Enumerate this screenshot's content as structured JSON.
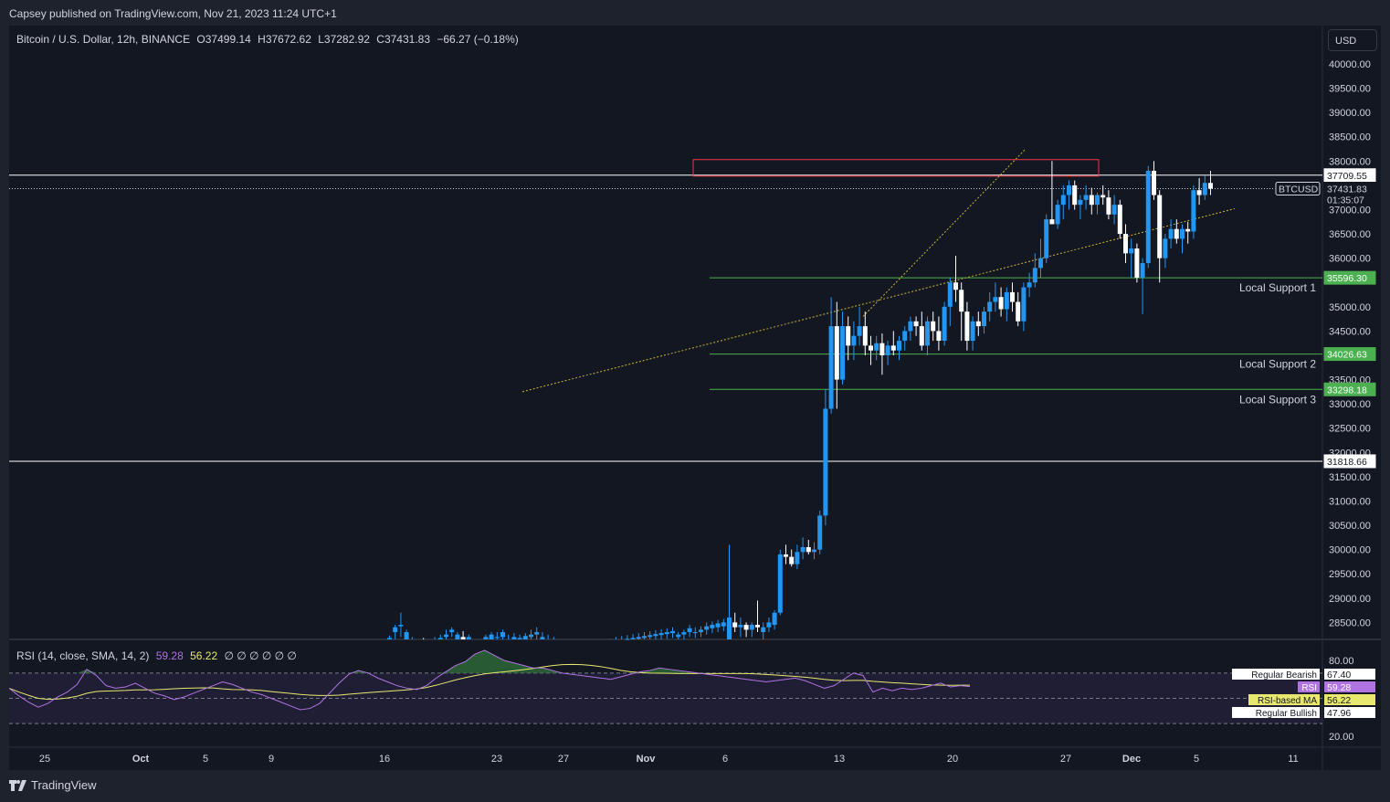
{
  "published_by": "Capsey published on TradingView.com, Nov 21, 2023 11:24 UTC+1",
  "symbol": {
    "name": "Bitcoin / U.S. Dollar, 12h, BINANCE",
    "open": "O37499.14",
    "high": "H37672.62",
    "low": "L37282.92",
    "close": "C37431.83",
    "change": "−66.27 (−0.18%)"
  },
  "currency_button": "USD",
  "brand": "TradingView",
  "colors": {
    "up": "#2196f3",
    "down": "#ffffff",
    "support": "#4caf50",
    "resistance_box": "#f23645",
    "rsi": "#b073e0",
    "rsi_ma": "#e8e86e",
    "trendline": "#c8b43c"
  },
  "chart_data": {
    "type": "candlestick",
    "x_axis_labels": [
      "25",
      "Oct",
      "5",
      "9",
      "16",
      "23",
      "27",
      "Nov",
      "6",
      "13",
      "20",
      "27",
      "Dec",
      "5",
      "11"
    ],
    "y_axis_labels": [
      "40000.00",
      "39500.00",
      "39000.00",
      "38500.00",
      "38000.00",
      "37000.00",
      "36500.00",
      "36000.00",
      "35000.00",
      "34500.00",
      "33500.00",
      "33000.00",
      "32500.00",
      "32000.00",
      "31500.00",
      "31000.00",
      "30500.00",
      "30000.00",
      "29500.00",
      "29000.00",
      "28500.00"
    ],
    "price_tags": [
      {
        "label": "37709.55",
        "value": 37709.55,
        "kind": "level"
      },
      {
        "label": "37431.83",
        "value": 37431.83,
        "kind": "last"
      },
      {
        "label": "35596.30",
        "value": 35596.3,
        "kind": "support"
      },
      {
        "label": "34026.63",
        "value": 34026.63,
        "kind": "support"
      },
      {
        "label": "33298.18",
        "value": 33298.18,
        "kind": "support"
      },
      {
        "label": "31818.66",
        "value": 31818.66,
        "kind": "level"
      }
    ],
    "symbol_tag": "BTCUSD",
    "countdown": "01:35:07",
    "horizontal_levels": [
      37709.55,
      31818.66
    ],
    "supports": [
      {
        "name": "Local Support 1",
        "value": 35596.3
      },
      {
        "name": "Local Support 2",
        "value": 34026.63
      },
      {
        "name": "Local Support 3",
        "value": 33298.18
      }
    ],
    "resistance_zone": {
      "from": 37690,
      "to": 38030
    },
    "candles_ohlc": [
      [
        28100,
        28230,
        28050,
        28180
      ],
      [
        28300,
        28450,
        28100,
        28400
      ],
      [
        28420,
        28700,
        28200,
        28450
      ],
      [
        28150,
        28350,
        28100,
        28300
      ],
      [
        28080,
        28200,
        27950,
        28150
      ],
      [
        28050,
        28150,
        27900,
        28100
      ],
      [
        28100,
        28180,
        27950,
        28000
      ],
      [
        27980,
        28100,
        27880,
        28050
      ],
      [
        28050,
        28200,
        27950,
        28150
      ],
      [
        28100,
        28250,
        28000,
        28180
      ],
      [
        28200,
        28350,
        28100,
        28250
      ],
      [
        28300,
        28400,
        28200,
        28350
      ],
      [
        28150,
        28300,
        28050,
        28250
      ],
      [
        28200,
        28320,
        28080,
        28150
      ],
      [
        28100,
        28250,
        27980,
        28200
      ],
      [
        28050,
        28150,
        27900,
        28100
      ],
      [
        27950,
        28100,
        27850,
        28050
      ],
      [
        28100,
        28250,
        28000,
        28200
      ],
      [
        28150,
        28300,
        28050,
        28250
      ],
      [
        28180,
        28300,
        28100,
        28200
      ],
      [
        28200,
        28350,
        28100,
        28300
      ],
      [
        28100,
        28250,
        28000,
        28150
      ],
      [
        28150,
        28280,
        28050,
        28200
      ],
      [
        28100,
        28250,
        28000,
        28180
      ],
      [
        28150,
        28280,
        28050,
        28220
      ],
      [
        28200,
        28350,
        28100,
        28250
      ],
      [
        28250,
        28400,
        28150,
        28300
      ],
      [
        28150,
        28300,
        28050,
        28200
      ],
      [
        28100,
        28250,
        28000,
        28150
      ],
      [
        28080,
        28200,
        27980,
        28120
      ],
      [
        28050,
        28150,
        27950,
        28100
      ],
      [
        28000,
        28120,
        27900,
        28050
      ],
      [
        27980,
        28100,
        27880,
        28020
      ],
      [
        27950,
        28080,
        27850,
        28000
      ],
      [
        27950,
        28080,
        27850,
        28010
      ],
      [
        27960,
        28080,
        27870,
        28020
      ],
      [
        27980,
        28100,
        27880,
        28050
      ],
      [
        28000,
        28120,
        27900,
        28060
      ],
      [
        28020,
        28140,
        27920,
        28080
      ],
      [
        28050,
        28160,
        27950,
        28100
      ],
      [
        28080,
        28200,
        27980,
        28120
      ],
      [
        28100,
        28220,
        28000,
        28140
      ],
      [
        28120,
        28240,
        28020,
        28160
      ],
      [
        28140,
        28260,
        28040,
        28180
      ],
      [
        28160,
        28280,
        28060,
        28200
      ],
      [
        28180,
        28300,
        28080,
        28220
      ],
      [
        28200,
        28320,
        28100,
        28240
      ],
      [
        28220,
        28340,
        28120,
        28260
      ],
      [
        28240,
        28360,
        28140,
        28280
      ],
      [
        28260,
        28380,
        28160,
        28300
      ],
      [
        28280,
        28400,
        28180,
        28320
      ],
      [
        28200,
        28300,
        28100,
        28250
      ],
      [
        28250,
        28350,
        28150,
        28300
      ],
      [
        28300,
        28450,
        28200,
        28380
      ],
      [
        28280,
        28400,
        28180,
        28300
      ],
      [
        28300,
        28420,
        28200,
        28350
      ],
      [
        28350,
        28500,
        28250,
        28420
      ],
      [
        28380,
        28520,
        28280,
        28450
      ],
      [
        28400,
        28550,
        28300,
        28480
      ],
      [
        28420,
        28570,
        28320,
        28500
      ],
      [
        28000,
        30100,
        27950,
        28600
      ],
      [
        28500,
        28700,
        28300,
        28400
      ],
      [
        28400,
        28600,
        28200,
        28450
      ],
      [
        28450,
        28500,
        28200,
        28350
      ],
      [
        28350,
        28500,
        28200,
        28450
      ],
      [
        28450,
        28950,
        28300,
        28400
      ],
      [
        28300,
        28500,
        28100,
        28400
      ],
      [
        28400,
        28600,
        28300,
        28500
      ],
      [
        28450,
        28750,
        28350,
        28700
      ],
      [
        28700,
        30000,
        28650,
        29900
      ],
      [
        29900,
        30100,
        29700,
        29850
      ],
      [
        29850,
        30000,
        29650,
        29700
      ],
      [
        29700,
        30100,
        29600,
        29950
      ],
      [
        29950,
        30250,
        29800,
        30050
      ],
      [
        30050,
        30200,
        29900,
        29950
      ],
      [
        29950,
        30150,
        29800,
        30000
      ],
      [
        30000,
        30800,
        29900,
        30700
      ],
      [
        30700,
        33300,
        30500,
        32900
      ],
      [
        32900,
        35200,
        32800,
        34600
      ],
      [
        34600,
        35100,
        32900,
        33500
      ],
      [
        33500,
        34900,
        33400,
        34600
      ],
      [
        34600,
        34800,
        33900,
        34200
      ],
      [
        34200,
        34700,
        33900,
        34400
      ],
      [
        34400,
        35000,
        34200,
        34600
      ],
      [
        34600,
        34900,
        34000,
        34200
      ],
      [
        34200,
        34400,
        33800,
        34100
      ],
      [
        34100,
        34400,
        33900,
        34250
      ],
      [
        34250,
        34450,
        33600,
        34000
      ],
      [
        34000,
        34300,
        33800,
        34200
      ],
      [
        34200,
        34500,
        34000,
        34100
      ],
      [
        34100,
        34400,
        33900,
        34300
      ],
      [
        34300,
        34600,
        34100,
        34500
      ],
      [
        34500,
        34800,
        34300,
        34700
      ],
      [
        34700,
        34800,
        34400,
        34600
      ],
      [
        34600,
        34900,
        34100,
        34200
      ],
      [
        34200,
        34800,
        34000,
        34700
      ],
      [
        34700,
        34900,
        34300,
        34500
      ],
      [
        34500,
        34800,
        34100,
        34300
      ],
      [
        34300,
        35100,
        34200,
        35000
      ],
      [
        35000,
        35600,
        34600,
        35500
      ],
      [
        35500,
        36050,
        35100,
        35350
      ],
      [
        35350,
        35500,
        34300,
        34900
      ],
      [
        34900,
        35100,
        34100,
        34300
      ],
      [
        34300,
        34800,
        34100,
        34700
      ],
      [
        34700,
        34900,
        34400,
        34600
      ],
      [
        34600,
        35000,
        34450,
        34900
      ],
      [
        34900,
        35300,
        34700,
        35100
      ],
      [
        35100,
        35500,
        34900,
        35200
      ],
      [
        35200,
        35400,
        34800,
        34950
      ],
      [
        34950,
        35400,
        34700,
        35300
      ],
      [
        35300,
        35500,
        34900,
        35100
      ],
      [
        35100,
        35300,
        34600,
        34700
      ],
      [
        34700,
        35500,
        34500,
        35400
      ],
      [
        35400,
        35700,
        35200,
        35500
      ],
      [
        35500,
        36100,
        35400,
        35800
      ],
      [
        35800,
        36400,
        35600,
        36000
      ],
      [
        36000,
        36900,
        35900,
        36800
      ],
      [
        36800,
        38000,
        36700,
        36700
      ],
      [
        36700,
        37200,
        36600,
        37100
      ],
      [
        37100,
        37500,
        36800,
        37300
      ],
      [
        37300,
        37600,
        37000,
        37500
      ],
      [
        37500,
        37600,
        37000,
        37100
      ],
      [
        37100,
        37300,
        36800,
        37200
      ],
      [
        37200,
        37500,
        37000,
        37300
      ],
      [
        37300,
        37450,
        36900,
        37100
      ],
      [
        37100,
        37350,
        36900,
        37300
      ],
      [
        37300,
        37500,
        37100,
        37250
      ],
      [
        37250,
        37400,
        36800,
        36900
      ],
      [
        36900,
        37300,
        36700,
        37100
      ],
      [
        37100,
        37200,
        36400,
        36500
      ],
      [
        36500,
        36700,
        35900,
        36100
      ],
      [
        36100,
        36400,
        35600,
        36200
      ],
      [
        36200,
        36300,
        35500,
        35600
      ],
      [
        35600,
        36000,
        34850,
        35900
      ],
      [
        35900,
        37900,
        35800,
        37800
      ],
      [
        37800,
        38000,
        37200,
        37300
      ],
      [
        37300,
        37400,
        35500,
        36000
      ],
      [
        36000,
        36500,
        35800,
        36400
      ],
      [
        36400,
        36800,
        36200,
        36600
      ],
      [
        36600,
        36800,
        36300,
        36400
      ],
      [
        36400,
        36700,
        36100,
        36600
      ],
      [
        36600,
        36750,
        36300,
        36550
      ],
      [
        36550,
        37500,
        36400,
        37400
      ],
      [
        37400,
        37650,
        37100,
        37300
      ],
      [
        37300,
        37700,
        37200,
        37550
      ],
      [
        37550,
        37800,
        37300,
        37431.83
      ]
    ],
    "rsi": {
      "length": 14,
      "legend": "RSI (14, close, SMA, 14, 2)",
      "rsi_value": "59.28",
      "ma_value": "56.22",
      "placeholder": "∅ ∅ ∅ ∅ ∅ ∅",
      "axis_labels": [
        "80.00",
        "20.00"
      ],
      "bands": [
        {
          "label": "Regular Bearish",
          "value": "67.40"
        },
        {
          "label": "RSI",
          "value": "59.28"
        },
        {
          "label": "RSI-based MA",
          "value": "56.22"
        },
        {
          "label": "Regular Bullish",
          "value": "47.96"
        }
      ],
      "values": [
        58,
        52,
        47,
        43,
        46,
        51,
        55,
        61,
        73,
        68,
        60,
        58,
        59,
        62,
        58,
        54,
        52,
        49,
        51,
        54,
        57,
        60,
        63,
        61,
        58,
        55,
        53,
        50,
        47,
        44,
        41,
        42,
        46,
        54,
        62,
        69,
        72,
        70,
        66,
        63,
        60,
        58,
        57,
        60,
        66,
        71,
        76,
        79,
        85,
        88,
        84,
        80,
        78,
        76,
        74,
        74,
        72,
        70,
        69,
        68,
        67,
        66,
        65,
        67,
        69,
        71,
        72,
        74,
        73,
        72,
        71,
        70,
        69,
        68,
        67,
        66,
        65,
        64,
        63,
        64,
        65,
        66,
        64,
        61,
        58,
        60,
        65,
        70,
        68,
        55,
        58,
        56,
        58,
        57,
        58,
        60,
        62,
        59,
        60,
        59.28
      ]
    }
  }
}
